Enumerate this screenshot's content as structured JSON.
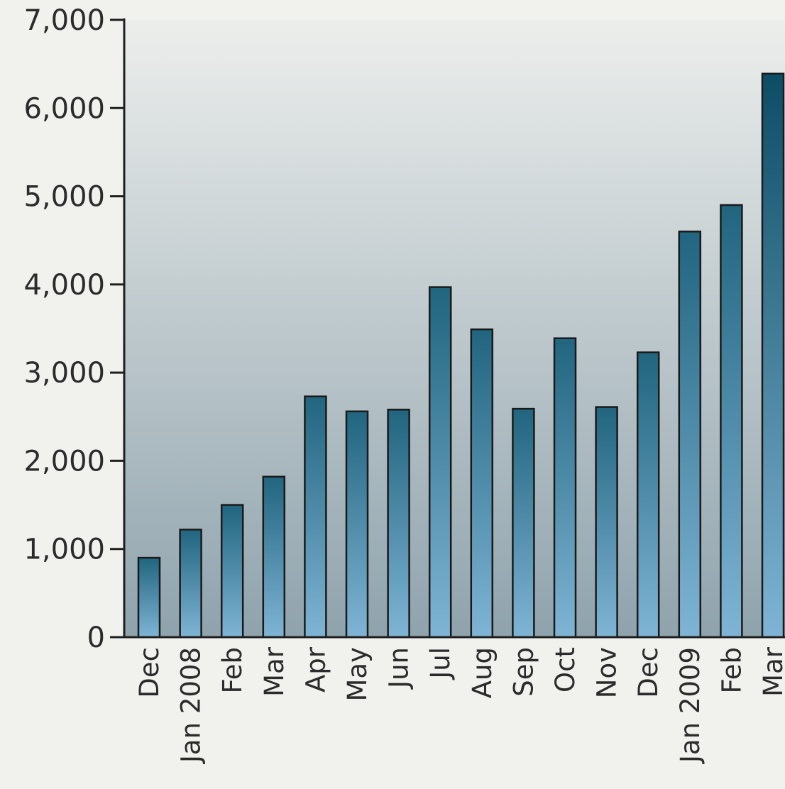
{
  "chart_data": {
    "type": "bar",
    "title": "",
    "xlabel": "",
    "ylabel": "",
    "ylim": [
      0,
      7000
    ],
    "yticks": [
      0,
      1000,
      2000,
      3000,
      4000,
      5000,
      6000,
      7000
    ],
    "ytick_labels": [
      "0",
      "1,000",
      "2,000",
      "3,000",
      "4,000",
      "5,000",
      "6,000",
      "7,000"
    ],
    "categories": [
      "Dec",
      "Jan 2008",
      "Feb",
      "Mar",
      "Apr",
      "May",
      "Jun",
      "Jul",
      "Aug",
      "Sep",
      "Oct",
      "Nov",
      "Dec",
      "Jan 2009",
      "Feb",
      "Mar"
    ],
    "values": [
      900,
      1220,
      1500,
      1820,
      2730,
      2560,
      2580,
      3970,
      3490,
      2590,
      3390,
      2610,
      3230,
      4600,
      4900,
      6390
    ],
    "grid": false,
    "legend": "none",
    "colors": {
      "bar_top": "#21657f",
      "bar_bottom": "#7fb4d4",
      "bar_last_top": "#0d4d64",
      "bar_stroke": "#1a1a1a",
      "axis": "#1f1f1f",
      "plot_bg_top": "#eceeec",
      "plot_bg_bottom": "#8fa3ad",
      "page_bg": "#f1f1ee"
    }
  }
}
